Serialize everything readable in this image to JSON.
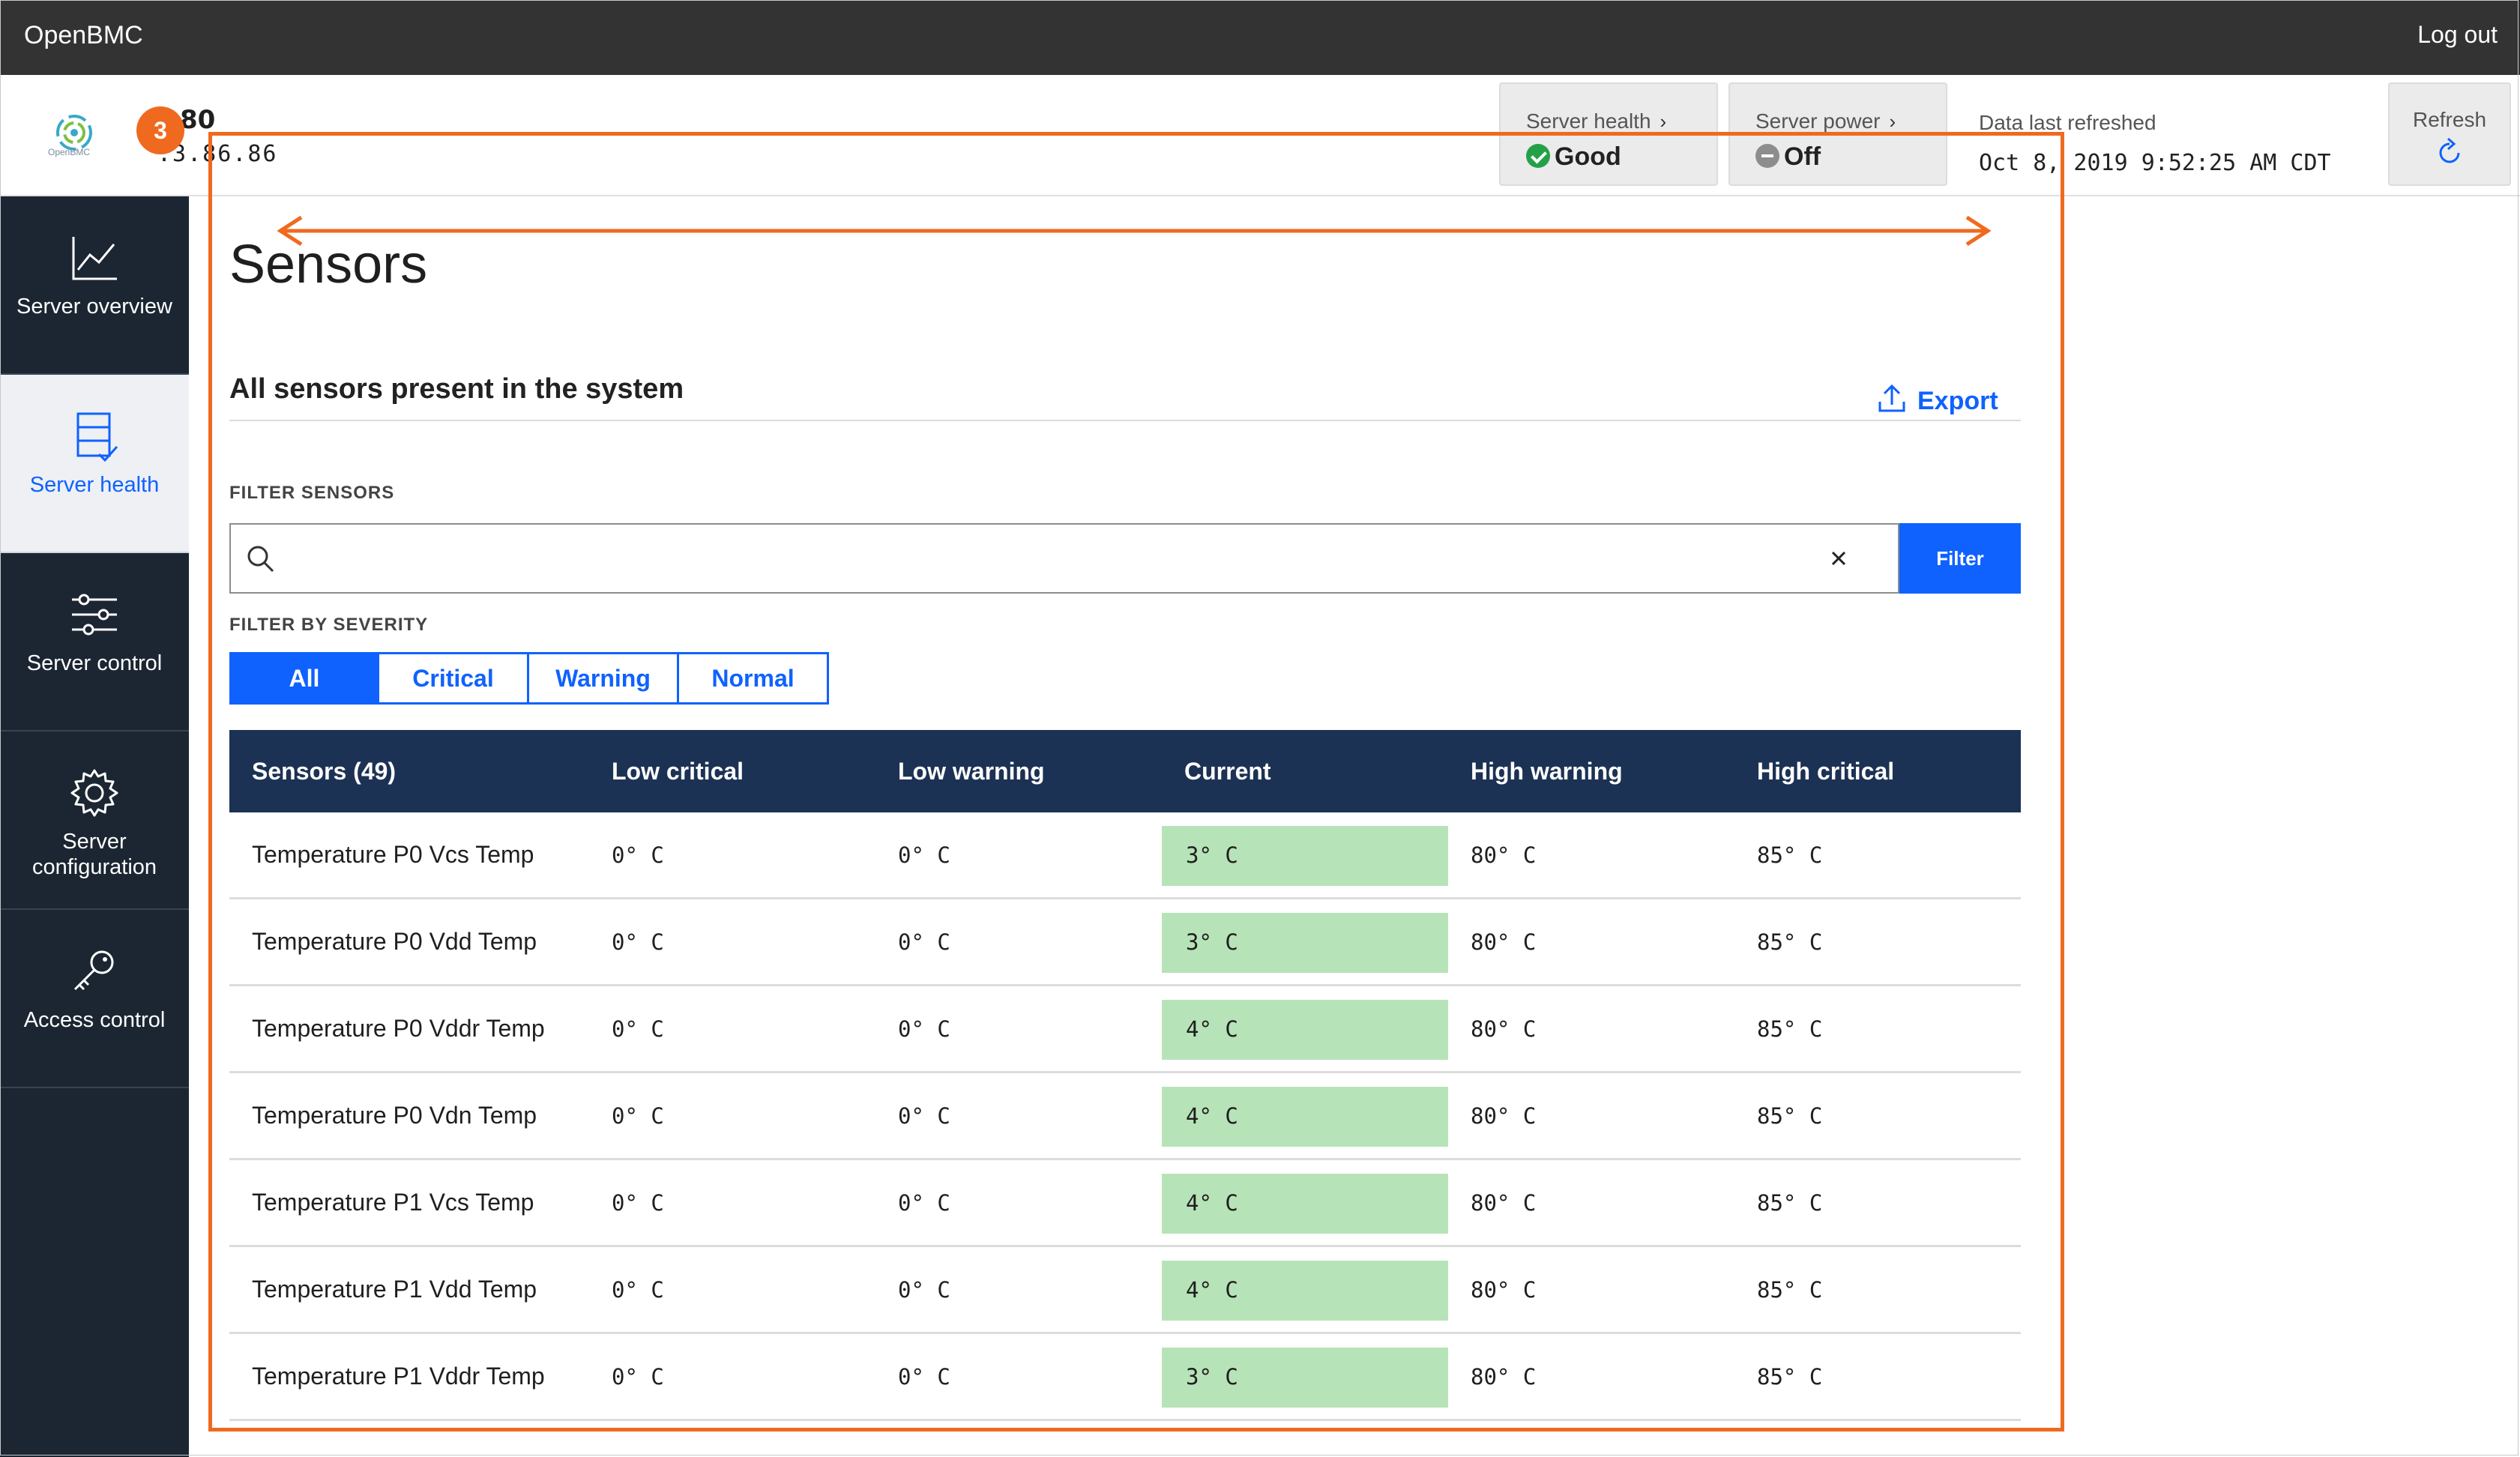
{
  "topbar": {
    "brand": "OpenBMC",
    "logout_label": "Log out"
  },
  "header": {
    "logo_text": "OpenBMC",
    "server_name": "80",
    "server_ip": ".3.86.86",
    "health": {
      "label": "Server health",
      "value": "Good"
    },
    "power": {
      "label": "Server power",
      "value": "Off"
    },
    "refresh_label": "Data last refreshed",
    "refresh_time": "Oct 8, 2019 9:52:25 AM CDT",
    "refresh_button": "Refresh"
  },
  "sidebar": {
    "items": [
      {
        "label": "Server overview",
        "icon": "chart-line-icon",
        "active": false
      },
      {
        "label": "Server health",
        "icon": "server-health-icon",
        "active": true
      },
      {
        "label": "Server control",
        "icon": "sliders-icon",
        "active": false
      },
      {
        "label": "Server configuration",
        "icon": "gear-icon",
        "active": false
      },
      {
        "label": "Access control",
        "icon": "key-icon",
        "active": false
      }
    ]
  },
  "main": {
    "title": "Sensors",
    "section_title": "All sensors present in the system",
    "export_label": "Export",
    "filter_label": "FILTER SENSORS",
    "search_value": "",
    "filter_button": "Filter",
    "severity_label": "FILTER BY SEVERITY",
    "severity_options": [
      "All",
      "Critical",
      "Warning",
      "Normal"
    ],
    "severity_selected": "All"
  },
  "table": {
    "headers": [
      "Sensors (49)",
      "Low critical",
      "Low warning",
      "Current",
      "High warning",
      "High critical"
    ],
    "rows": [
      [
        "Temperature P0 Vcs Temp",
        "0° C",
        "0° C",
        "3° C",
        "80° C",
        "85° C"
      ],
      [
        "Temperature P0 Vdd Temp",
        "0° C",
        "0° C",
        "3° C",
        "80° C",
        "85° C"
      ],
      [
        "Temperature P0 Vddr Temp",
        "0° C",
        "0° C",
        "4° C",
        "80° C",
        "85° C"
      ],
      [
        "Temperature P0 Vdn Temp",
        "0° C",
        "0° C",
        "4° C",
        "80° C",
        "85° C"
      ],
      [
        "Temperature P1 Vcs Temp",
        "0° C",
        "0° C",
        "4° C",
        "80° C",
        "85° C"
      ],
      [
        "Temperature P1 Vdd Temp",
        "0° C",
        "0° C",
        "4° C",
        "80° C",
        "85° C"
      ],
      [
        "Temperature P1 Vddr Temp",
        "0° C",
        "0° C",
        "3° C",
        "80° C",
        "85° C"
      ]
    ]
  },
  "annotation": {
    "badge": "3",
    "color": "#ef6a1f"
  },
  "colors": {
    "accent": "#0f62fe",
    "normal_status": "#b7e3b8",
    "table_header": "#1c3254",
    "sidebar": "#1c2632"
  }
}
